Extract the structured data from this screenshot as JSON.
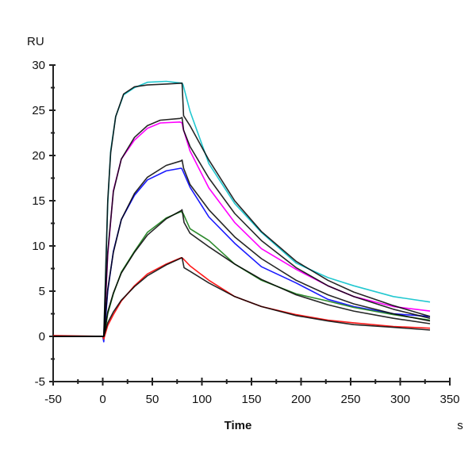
{
  "chart_data": {
    "type": "line",
    "title": "",
    "xlabel": "Time",
    "xunit": "s",
    "ylabel": "RU",
    "xlim": [
      -50,
      350
    ],
    "ylim": [
      -5,
      30
    ],
    "xticks": [
      -50,
      0,
      50,
      100,
      150,
      200,
      250,
      300,
      350
    ],
    "yticks": [
      -5,
      0,
      5,
      10,
      15,
      20,
      25,
      30
    ],
    "grid": false,
    "legend": "none",
    "series": [
      {
        "color": "#22c8d0",
        "kind": "data",
        "points": [
          [
            -50,
            0
          ],
          [
            0,
            0
          ],
          [
            1,
            -0.2
          ],
          [
            5,
            14.7
          ],
          [
            8,
            20.5
          ],
          [
            13,
            24.3
          ],
          [
            21,
            26.7
          ],
          [
            32,
            27.5
          ],
          [
            45,
            28.1
          ],
          [
            64,
            28.2
          ],
          [
            80,
            28.0
          ],
          [
            81,
            27.8
          ],
          [
            88,
            24.9
          ],
          [
            107,
            19.1
          ],
          [
            133,
            14.7
          ],
          [
            160,
            11.5
          ],
          [
            195,
            8.1
          ],
          [
            227,
            6.5
          ],
          [
            253,
            5.6
          ],
          [
            293,
            4.4
          ],
          [
            330,
            3.8
          ]
        ]
      },
      {
        "color": "#000000",
        "kind": "fit",
        "points": [
          [
            -50,
            0
          ],
          [
            0,
            0
          ],
          [
            1,
            0
          ],
          [
            5,
            15
          ],
          [
            8,
            20.3
          ],
          [
            13,
            24.3
          ],
          [
            21,
            26.8
          ],
          [
            32,
            27.6
          ],
          [
            45,
            27.8
          ],
          [
            64,
            27.9
          ],
          [
            80,
            28.0
          ],
          [
            81.5,
            24.4
          ],
          [
            88,
            23.3
          ],
          [
            107,
            19.5
          ],
          [
            133,
            15.0
          ],
          [
            160,
            11.6
          ],
          [
            195,
            8.3
          ],
          [
            227,
            6.2
          ],
          [
            253,
            4.9
          ],
          [
            293,
            3.4
          ],
          [
            330,
            2.2
          ]
        ]
      },
      {
        "color": "#ff00ff",
        "kind": "data",
        "points": [
          [
            -50,
            0
          ],
          [
            0,
            0
          ],
          [
            1,
            -0.3
          ],
          [
            5,
            9
          ],
          [
            10.7,
            16.1
          ],
          [
            18.7,
            19.6
          ],
          [
            32,
            21.7
          ],
          [
            45,
            23.0
          ],
          [
            58,
            23.6
          ],
          [
            78,
            23.7
          ],
          [
            80,
            23.6
          ],
          [
            81,
            23.0
          ],
          [
            88,
            20.5
          ],
          [
            107,
            16.4
          ],
          [
            133,
            12.6
          ],
          [
            160,
            9.7
          ],
          [
            195,
            7.4
          ],
          [
            227,
            5.6
          ],
          [
            253,
            4.4
          ],
          [
            293,
            3.3
          ],
          [
            330,
            2.8
          ]
        ]
      },
      {
        "color": "#000000",
        "kind": "fit",
        "points": [
          [
            -50,
            0
          ],
          [
            0,
            0
          ],
          [
            1,
            0
          ],
          [
            5,
            9.3
          ],
          [
            10.7,
            16.0
          ],
          [
            18.7,
            19.6
          ],
          [
            32,
            22.0
          ],
          [
            45,
            23.3
          ],
          [
            58,
            23.9
          ],
          [
            78,
            24.1
          ],
          [
            80,
            24.2
          ],
          [
            81.5,
            22.8
          ],
          [
            88,
            21.0
          ],
          [
            107,
            17.5
          ],
          [
            133,
            13.6
          ],
          [
            160,
            10.6
          ],
          [
            195,
            7.6
          ],
          [
            227,
            5.6
          ],
          [
            253,
            4.4
          ],
          [
            293,
            3.0
          ],
          [
            330,
            2.0
          ]
        ]
      },
      {
        "color": "#1a1aff",
        "kind": "data",
        "points": [
          [
            -50,
            0
          ],
          [
            0,
            0
          ],
          [
            1,
            -0.6
          ],
          [
            5,
            5
          ],
          [
            10.7,
            9.4
          ],
          [
            18.7,
            12.9
          ],
          [
            32,
            15.6
          ],
          [
            45,
            17.3
          ],
          [
            64,
            18.3
          ],
          [
            79,
            18.6
          ],
          [
            80,
            18.5
          ],
          [
            88,
            16.5
          ],
          [
            107,
            13.2
          ],
          [
            133,
            10.3
          ],
          [
            160,
            7.7
          ],
          [
            195,
            5.9
          ],
          [
            227,
            4.1
          ],
          [
            253,
            3.3
          ],
          [
            293,
            2.5
          ],
          [
            330,
            2.2
          ]
        ]
      },
      {
        "color": "#000000",
        "kind": "fit",
        "points": [
          [
            -50,
            0
          ],
          [
            0,
            0
          ],
          [
            1,
            0
          ],
          [
            5,
            5.2
          ],
          [
            10.7,
            9.3
          ],
          [
            18.7,
            12.9
          ],
          [
            32,
            15.8
          ],
          [
            45,
            17.6
          ],
          [
            64,
            18.9
          ],
          [
            79,
            19.4
          ],
          [
            80,
            19.5
          ],
          [
            81.5,
            18.6
          ],
          [
            88,
            16.8
          ],
          [
            107,
            14.0
          ],
          [
            133,
            11.0
          ],
          [
            160,
            8.6
          ],
          [
            195,
            6.2
          ],
          [
            227,
            4.6
          ],
          [
            253,
            3.6
          ],
          [
            293,
            2.5
          ],
          [
            330,
            1.7
          ]
        ]
      },
      {
        "color": "#2e8b2e",
        "kind": "data",
        "points": [
          [
            -50,
            0
          ],
          [
            0,
            0
          ],
          [
            1,
            -0.3
          ],
          [
            5,
            2.5
          ],
          [
            10.7,
            4.7
          ],
          [
            18.7,
            7.1
          ],
          [
            32,
            9.4
          ],
          [
            45,
            11.5
          ],
          [
            64,
            13.1
          ],
          [
            79,
            13.8
          ],
          [
            81,
            13.6
          ],
          [
            88,
            11.9
          ],
          [
            107,
            10.6
          ],
          [
            133,
            8.0
          ],
          [
            160,
            6.2
          ],
          [
            195,
            4.7
          ],
          [
            227,
            3.9
          ],
          [
            253,
            3.2
          ],
          [
            293,
            2.4
          ],
          [
            330,
            1.8
          ]
        ]
      },
      {
        "color": "#000000",
        "kind": "fit",
        "points": [
          [
            -50,
            0
          ],
          [
            0,
            0
          ],
          [
            1,
            0
          ],
          [
            5,
            2.7
          ],
          [
            10.7,
            4.8
          ],
          [
            18.7,
            7.0
          ],
          [
            32,
            9.3
          ],
          [
            45,
            11.2
          ],
          [
            64,
            13.0
          ],
          [
            79,
            13.9
          ],
          [
            80,
            14.0
          ],
          [
            82,
            12.6
          ],
          [
            88,
            11.4
          ],
          [
            107,
            9.9
          ],
          [
            133,
            8.0
          ],
          [
            160,
            6.3
          ],
          [
            195,
            4.6
          ],
          [
            227,
            3.5
          ],
          [
            253,
            2.8
          ],
          [
            293,
            2.0
          ],
          [
            330,
            1.4
          ]
        ]
      },
      {
        "color": "#ff1a1a",
        "kind": "data",
        "points": [
          [
            -50,
            0.1
          ],
          [
            0,
            0
          ],
          [
            1,
            -0.3
          ],
          [
            5,
            1.2
          ],
          [
            10.7,
            2.4
          ],
          [
            18.7,
            3.9
          ],
          [
            32,
            5.6
          ],
          [
            45,
            6.9
          ],
          [
            64,
            8.0
          ],
          [
            79,
            8.7
          ],
          [
            81,
            8.6
          ],
          [
            88,
            7.8
          ],
          [
            107,
            6.2
          ],
          [
            133,
            4.4
          ],
          [
            160,
            3.3
          ],
          [
            195,
            2.4
          ],
          [
            227,
            1.8
          ],
          [
            253,
            1.5
          ],
          [
            293,
            1.1
          ],
          [
            330,
            0.9
          ]
        ]
      },
      {
        "color": "#000000",
        "kind": "fit",
        "points": [
          [
            -50,
            0
          ],
          [
            0,
            0
          ],
          [
            1,
            0
          ],
          [
            5,
            1.5
          ],
          [
            10.7,
            2.7
          ],
          [
            18.7,
            4.0
          ],
          [
            32,
            5.5
          ],
          [
            45,
            6.7
          ],
          [
            64,
            7.9
          ],
          [
            80,
            8.7
          ],
          [
            82,
            7.6
          ],
          [
            88,
            7.2
          ],
          [
            107,
            5.9
          ],
          [
            133,
            4.4
          ],
          [
            160,
            3.3
          ],
          [
            195,
            2.3
          ],
          [
            227,
            1.7
          ],
          [
            253,
            1.3
          ],
          [
            293,
            1.0
          ],
          [
            330,
            0.7
          ]
        ]
      }
    ]
  }
}
